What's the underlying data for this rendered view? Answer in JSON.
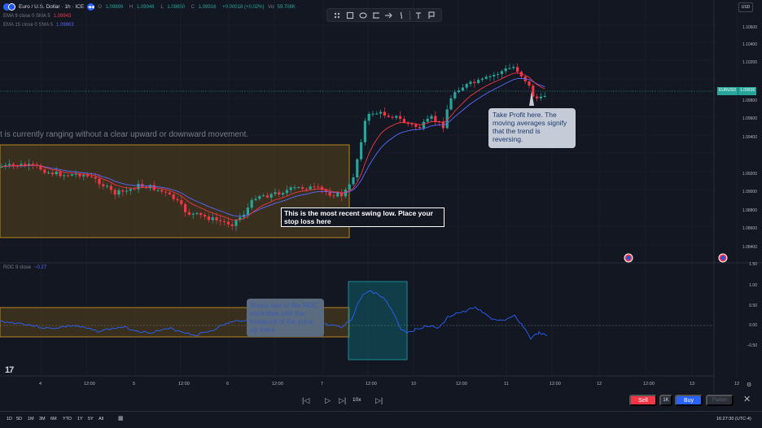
{
  "header": {
    "symbol": "Euro / U.S. Dollar · 1h · ICE",
    "ohlc": [
      {
        "label": "O",
        "value": "1.09899"
      },
      {
        "label": "H",
        "value": "1.09946"
      },
      {
        "label": "L",
        "value": "1.09850"
      },
      {
        "label": "C",
        "value": "1.09916"
      }
    ],
    "change": "+0.00018 (+0.02%)",
    "vol_label": "Vol",
    "vol_value": "59.708K",
    "ema9": {
      "label": "EMA 9 close 0 SMA 5",
      "value": "1.09943",
      "color": "#f23645"
    },
    "ema15": {
      "label": "EMA 15 close 0 SMA 5",
      "value": "1.09863",
      "color": "#5b6bff"
    }
  },
  "currency": "USD",
  "price_axis": [
    "1.10600",
    "1.10400",
    "1.10200",
    "1.09800",
    "1.09600",
    "1.09400",
    "1.09200",
    "1.09000",
    "1.08800",
    "1.08600",
    "1.08400",
    "1.08200",
    "1.08000"
  ],
  "price_badge": {
    "symbol": "EURUSD",
    "value": "1.09916"
  },
  "roc_axis": [
    "1.00",
    "0.50",
    "0.00",
    "−0.50"
  ],
  "roc_axis_edge": "1.50",
  "roc_legend": {
    "label": "ROC 9 close",
    "value": "−0.27"
  },
  "time_axis": [
    "4",
    "12:00",
    "5",
    "12:00",
    "6",
    "12:00",
    "7",
    "12:00",
    "10",
    "12:00",
    "11",
    "12:00",
    "12",
    "12:00",
    "13",
    "12"
  ],
  "annotations": {
    "range_note": "t is currently ranging without a clear upward or downward movement.",
    "swing_note": "This is the most recent swing low. Place your stop loss here",
    "tp_note": "Take Profit here. The moving averages signify that the trend is reversing.",
    "roc_note": "Sharp rise of the ROC coincides with the breakout of the price up there"
  },
  "replay": {
    "speed": "10x"
  },
  "trade": {
    "sell": "Sell",
    "qty": "1K",
    "buy": "Buy",
    "flatten": "Flatten"
  },
  "ranges": [
    "1D",
    "5D",
    "1M",
    "3M",
    "6M",
    "YTD",
    "1Y",
    "5Y",
    "All"
  ],
  "clock": "16:27:30 (UTC-4)",
  "logo": "17",
  "colors": {
    "bull": "#26a69a",
    "bear": "#f23645",
    "ema_fast": "#f23645",
    "ema_slow": "#5b6bff",
    "range_box": "#8a6417",
    "breakout_box": "#0e5c66"
  }
}
